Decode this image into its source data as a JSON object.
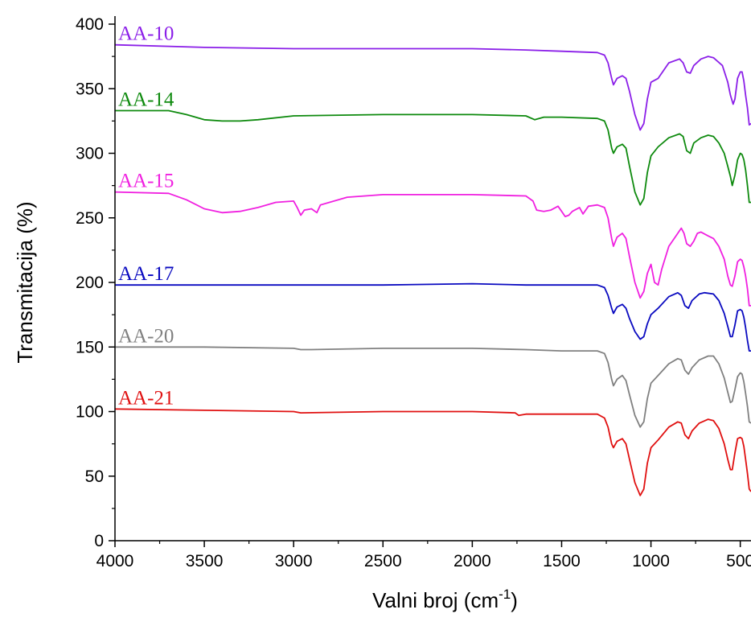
{
  "chart_data": {
    "type": "line",
    "xlabel": "Valni broj (cm",
    "xlabel_sup": "-1",
    "xlabel_end": ")",
    "ylabel": "Transmitacija (%)",
    "xlim": [
      4000,
      440
    ],
    "ylim": [
      0,
      400
    ],
    "x_reversed": true,
    "xticks": [
      4000,
      3500,
      3000,
      2500,
      2000,
      1500,
      1000,
      500
    ],
    "xtick_labels": [
      "4000",
      "3500",
      "3000",
      "2500",
      "2000",
      "1500",
      "1000",
      "500"
    ],
    "yticks": [
      0,
      50,
      100,
      150,
      200,
      250,
      300,
      350,
      400
    ],
    "ytick_labels": [
      "0",
      "50",
      "100",
      "150",
      "200",
      "250",
      "300",
      "350",
      "400"
    ],
    "grid": false,
    "series": [
      {
        "name": "AA-10",
        "color": "#8B1FE8",
        "points": [
          [
            4000,
            384
          ],
          [
            3500,
            382
          ],
          [
            3000,
            381
          ],
          [
            2500,
            381
          ],
          [
            2000,
            381
          ],
          [
            1700,
            380
          ],
          [
            1500,
            379
          ],
          [
            1300,
            378
          ],
          [
            1260,
            376
          ],
          [
            1240,
            370
          ],
          [
            1220,
            358
          ],
          [
            1210,
            353
          ],
          [
            1190,
            358
          ],
          [
            1160,
            360
          ],
          [
            1140,
            358
          ],
          [
            1120,
            348
          ],
          [
            1090,
            330
          ],
          [
            1060,
            318
          ],
          [
            1040,
            323
          ],
          [
            1020,
            342
          ],
          [
            1000,
            355
          ],
          [
            960,
            358
          ],
          [
            900,
            370
          ],
          [
            840,
            373
          ],
          [
            820,
            370
          ],
          [
            800,
            363
          ],
          [
            780,
            362
          ],
          [
            760,
            368
          ],
          [
            720,
            373
          ],
          [
            680,
            375
          ],
          [
            650,
            374
          ],
          [
            600,
            368
          ],
          [
            570,
            355
          ],
          [
            555,
            345
          ],
          [
            540,
            338
          ],
          [
            530,
            342
          ],
          [
            515,
            358
          ],
          [
            500,
            363
          ],
          [
            490,
            363
          ],
          [
            480,
            356
          ],
          [
            470,
            345
          ],
          [
            460,
            335
          ],
          [
            450,
            322
          ],
          [
            440,
            323
          ]
        ]
      },
      {
        "name": "AA-14",
        "color": "#0E8A0E",
        "points": [
          [
            4000,
            333
          ],
          [
            3700,
            333
          ],
          [
            3600,
            330
          ],
          [
            3500,
            326
          ],
          [
            3400,
            325
          ],
          [
            3300,
            325
          ],
          [
            3200,
            326
          ],
          [
            3000,
            329
          ],
          [
            2500,
            330
          ],
          [
            2000,
            330
          ],
          [
            1700,
            329
          ],
          [
            1650,
            326
          ],
          [
            1600,
            328
          ],
          [
            1500,
            328
          ],
          [
            1300,
            327
          ],
          [
            1260,
            325
          ],
          [
            1240,
            318
          ],
          [
            1220,
            304
          ],
          [
            1210,
            300
          ],
          [
            1190,
            305
          ],
          [
            1160,
            307
          ],
          [
            1140,
            304
          ],
          [
            1120,
            290
          ],
          [
            1090,
            270
          ],
          [
            1060,
            260
          ],
          [
            1040,
            265
          ],
          [
            1020,
            285
          ],
          [
            1000,
            298
          ],
          [
            960,
            305
          ],
          [
            900,
            312
          ],
          [
            840,
            315
          ],
          [
            820,
            313
          ],
          [
            800,
            302
          ],
          [
            780,
            300
          ],
          [
            760,
            308
          ],
          [
            720,
            312
          ],
          [
            680,
            314
          ],
          [
            650,
            313
          ],
          [
            620,
            308
          ],
          [
            590,
            300
          ],
          [
            570,
            290
          ],
          [
            555,
            282
          ],
          [
            545,
            275
          ],
          [
            530,
            283
          ],
          [
            515,
            295
          ],
          [
            500,
            300
          ],
          [
            490,
            299
          ],
          [
            480,
            295
          ],
          [
            470,
            287
          ],
          [
            460,
            275
          ],
          [
            450,
            262
          ],
          [
            440,
            262
          ]
        ]
      },
      {
        "name": "AA-15",
        "color": "#F020E0",
        "points": [
          [
            4000,
            270
          ],
          [
            3700,
            269
          ],
          [
            3600,
            264
          ],
          [
            3500,
            257
          ],
          [
            3400,
            254
          ],
          [
            3300,
            255
          ],
          [
            3200,
            258
          ],
          [
            3100,
            262
          ],
          [
            3000,
            263
          ],
          [
            2980,
            258
          ],
          [
            2960,
            252
          ],
          [
            2940,
            256
          ],
          [
            2900,
            257
          ],
          [
            2870,
            254
          ],
          [
            2850,
            260
          ],
          [
            2700,
            266
          ],
          [
            2500,
            268
          ],
          [
            2000,
            268
          ],
          [
            1700,
            267
          ],
          [
            1660,
            263
          ],
          [
            1640,
            256
          ],
          [
            1600,
            255
          ],
          [
            1560,
            256
          ],
          [
            1520,
            259
          ],
          [
            1500,
            255
          ],
          [
            1480,
            251
          ],
          [
            1460,
            252
          ],
          [
            1440,
            255
          ],
          [
            1400,
            258
          ],
          [
            1380,
            253
          ],
          [
            1350,
            259
          ],
          [
            1300,
            260
          ],
          [
            1260,
            258
          ],
          [
            1240,
            250
          ],
          [
            1220,
            234
          ],
          [
            1210,
            228
          ],
          [
            1190,
            235
          ],
          [
            1160,
            238
          ],
          [
            1140,
            234
          ],
          [
            1120,
            220
          ],
          [
            1090,
            200
          ],
          [
            1060,
            188
          ],
          [
            1040,
            193
          ],
          [
            1020,
            207
          ],
          [
            1000,
            214
          ],
          [
            980,
            200
          ],
          [
            960,
            198
          ],
          [
            940,
            210
          ],
          [
            900,
            228
          ],
          [
            860,
            236
          ],
          [
            840,
            240
          ],
          [
            830,
            242
          ],
          [
            815,
            238
          ],
          [
            800,
            230
          ],
          [
            780,
            228
          ],
          [
            760,
            232
          ],
          [
            740,
            238
          ],
          [
            720,
            239
          ],
          [
            680,
            236
          ],
          [
            650,
            234
          ],
          [
            620,
            228
          ],
          [
            590,
            218
          ],
          [
            570,
            205
          ],
          [
            555,
            198
          ],
          [
            545,
            197
          ],
          [
            530,
            205
          ],
          [
            515,
            216
          ],
          [
            500,
            218
          ],
          [
            490,
            217
          ],
          [
            480,
            212
          ],
          [
            470,
            205
          ],
          [
            460,
            195
          ],
          [
            450,
            182
          ],
          [
            440,
            182
          ]
        ]
      },
      {
        "name": "AA-17",
        "color": "#0A0AC0",
        "points": [
          [
            4000,
            198
          ],
          [
            3500,
            198
          ],
          [
            3000,
            198
          ],
          [
            2500,
            198
          ],
          [
            2000,
            199
          ],
          [
            1700,
            198
          ],
          [
            1500,
            198
          ],
          [
            1300,
            198
          ],
          [
            1260,
            196
          ],
          [
            1240,
            190
          ],
          [
            1220,
            180
          ],
          [
            1210,
            176
          ],
          [
            1190,
            181
          ],
          [
            1160,
            183
          ],
          [
            1140,
            180
          ],
          [
            1120,
            172
          ],
          [
            1090,
            162
          ],
          [
            1060,
            156
          ],
          [
            1040,
            158
          ],
          [
            1020,
            168
          ],
          [
            1000,
            175
          ],
          [
            960,
            180
          ],
          [
            900,
            189
          ],
          [
            850,
            192
          ],
          [
            830,
            190
          ],
          [
            810,
            182
          ],
          [
            790,
            180
          ],
          [
            770,
            186
          ],
          [
            730,
            191
          ],
          [
            700,
            192
          ],
          [
            650,
            191
          ],
          [
            620,
            186
          ],
          [
            590,
            176
          ],
          [
            570,
            166
          ],
          [
            555,
            158
          ],
          [
            545,
            158
          ],
          [
            530,
            167
          ],
          [
            515,
            178
          ],
          [
            500,
            179
          ],
          [
            490,
            178
          ],
          [
            480,
            173
          ],
          [
            470,
            165
          ],
          [
            460,
            155
          ],
          [
            450,
            147
          ],
          [
            440,
            147
          ]
        ]
      },
      {
        "name": "AA-20",
        "color": "#808080",
        "points": [
          [
            4000,
            150
          ],
          [
            3500,
            150
          ],
          [
            3000,
            149
          ],
          [
            2960,
            148
          ],
          [
            2900,
            148
          ],
          [
            2500,
            149
          ],
          [
            2000,
            149
          ],
          [
            1700,
            148
          ],
          [
            1500,
            147
          ],
          [
            1300,
            147
          ],
          [
            1260,
            145
          ],
          [
            1240,
            138
          ],
          [
            1220,
            125
          ],
          [
            1210,
            120
          ],
          [
            1190,
            125
          ],
          [
            1160,
            128
          ],
          [
            1140,
            124
          ],
          [
            1120,
            113
          ],
          [
            1090,
            97
          ],
          [
            1060,
            88
          ],
          [
            1040,
            92
          ],
          [
            1020,
            110
          ],
          [
            1000,
            122
          ],
          [
            960,
            128
          ],
          [
            900,
            137
          ],
          [
            850,
            141
          ],
          [
            830,
            140
          ],
          [
            810,
            132
          ],
          [
            790,
            129
          ],
          [
            770,
            134
          ],
          [
            730,
            140
          ],
          [
            680,
            143
          ],
          [
            650,
            143
          ],
          [
            620,
            137
          ],
          [
            590,
            126
          ],
          [
            570,
            115
          ],
          [
            555,
            107
          ],
          [
            545,
            108
          ],
          [
            530,
            117
          ],
          [
            515,
            127
          ],
          [
            500,
            130
          ],
          [
            490,
            129
          ],
          [
            480,
            123
          ],
          [
            470,
            114
          ],
          [
            460,
            104
          ],
          [
            450,
            92
          ],
          [
            440,
            91
          ]
        ]
      },
      {
        "name": "AA-21",
        "color": "#E01010",
        "points": [
          [
            4000,
            102
          ],
          [
            3500,
            101
          ],
          [
            3000,
            100
          ],
          [
            2960,
            99
          ],
          [
            2500,
            100
          ],
          [
            2000,
            100
          ],
          [
            1760,
            99
          ],
          [
            1740,
            97
          ],
          [
            1700,
            98
          ],
          [
            1500,
            98
          ],
          [
            1300,
            98
          ],
          [
            1260,
            95
          ],
          [
            1240,
            88
          ],
          [
            1220,
            75
          ],
          [
            1210,
            72
          ],
          [
            1190,
            77
          ],
          [
            1160,
            79
          ],
          [
            1140,
            75
          ],
          [
            1120,
            63
          ],
          [
            1090,
            45
          ],
          [
            1060,
            35
          ],
          [
            1040,
            40
          ],
          [
            1020,
            60
          ],
          [
            1000,
            72
          ],
          [
            960,
            78
          ],
          [
            900,
            88
          ],
          [
            850,
            92
          ],
          [
            830,
            91
          ],
          [
            810,
            82
          ],
          [
            790,
            79
          ],
          [
            770,
            85
          ],
          [
            730,
            91
          ],
          [
            680,
            94
          ],
          [
            650,
            93
          ],
          [
            620,
            87
          ],
          [
            590,
            75
          ],
          [
            570,
            63
          ],
          [
            555,
            55
          ],
          [
            545,
            55
          ],
          [
            530,
            68
          ],
          [
            515,
            79
          ],
          [
            500,
            80
          ],
          [
            490,
            79
          ],
          [
            480,
            73
          ],
          [
            470,
            63
          ],
          [
            460,
            52
          ],
          [
            450,
            40
          ],
          [
            440,
            38
          ]
        ]
      }
    ]
  }
}
